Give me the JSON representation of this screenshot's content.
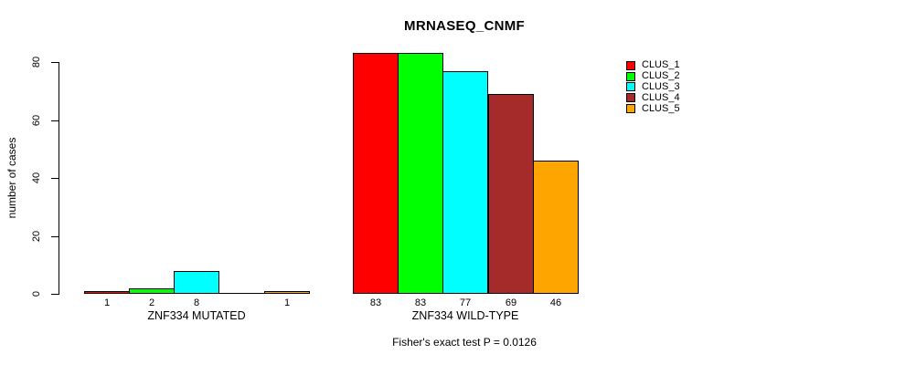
{
  "chart_data": {
    "type": "bar",
    "title": "MRNASEQ_CNMF",
    "ylabel": "number of cases",
    "xlabel": "",
    "footnote": "Fisher's exact test P = 0.0126",
    "ylim": [
      0,
      80
    ],
    "yticks": [
      0,
      20,
      40,
      60,
      80
    ],
    "grid": false,
    "legend_position": "top-right",
    "categories": [
      "ZNF334 MUTATED",
      "ZNF334 WILD-TYPE"
    ],
    "series": [
      {
        "name": "CLUS_1",
        "color": "#FF0000",
        "values": [
          1,
          83
        ]
      },
      {
        "name": "CLUS_2",
        "color": "#00FF00",
        "values": [
          2,
          83
        ]
      },
      {
        "name": "CLUS_3",
        "color": "#00FFFF",
        "values": [
          8,
          77
        ]
      },
      {
        "name": "CLUS_4",
        "color": "#A52A2A",
        "values": [
          0,
          69
        ]
      },
      {
        "name": "CLUS_5",
        "color": "#FFA500",
        "values": [
          1,
          46
        ]
      }
    ],
    "bar_value_labels_shown": true,
    "hide_zero_labels": true,
    "text_color": "#000000",
    "background_color": "#FFFFFF"
  }
}
